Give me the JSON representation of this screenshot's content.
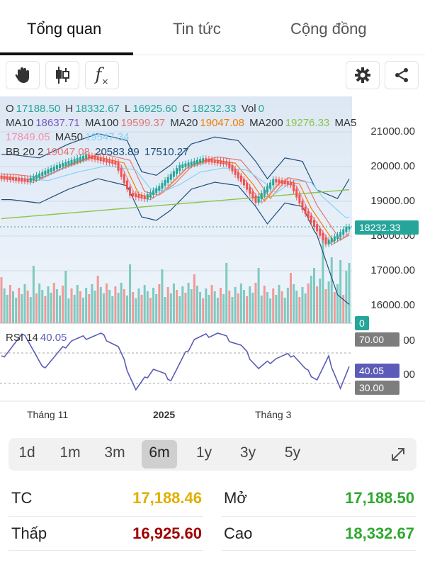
{
  "tabs": [
    {
      "label": "Tổng quan",
      "active": true
    },
    {
      "label": "Tin tức",
      "active": false
    },
    {
      "label": "Cộng đồng",
      "active": false
    }
  ],
  "toolbar": {
    "icons": [
      "hand-icon",
      "candlestick-icon",
      "function-icon",
      "gear-icon",
      "share-icon"
    ],
    "function_label": "f"
  },
  "legend": {
    "ohlc": {
      "o_label": "O",
      "o": "17188.50",
      "h_label": "H",
      "h": "18332.67",
      "l_label": "L",
      "l": "16925.60",
      "c_label": "C",
      "c": "18232.33",
      "vol_label": "Vol",
      "vol": "0"
    },
    "ma": [
      {
        "label": "MA10",
        "value": "18637.71"
      },
      {
        "label": "MA100",
        "value": "19599.37"
      },
      {
        "label": "MA20",
        "value": "19047.08"
      },
      {
        "label": "MA200",
        "value": "19276.33"
      },
      {
        "label": "MA5",
        "value": "17849.05"
      },
      {
        "label": "MA50",
        "value": "19547.34"
      }
    ],
    "bb": {
      "label": "BB 20 2",
      "mid": "19047.08",
      "upper": "20583.89",
      "lower": "17510.27"
    },
    "rsi": {
      "label": "RSI 14",
      "value": "40.05"
    }
  },
  "price_axis": [
    "21000.00",
    "20000.00",
    "19000.00",
    "18000.00",
    "17000.00",
    "16000.00"
  ],
  "rsi_axis": [
    "70.00",
    "30.00"
  ],
  "rsi_axis_partial": [
    "00",
    "00"
  ],
  "badges": {
    "current_price": "18232.33",
    "volume": "0",
    "rsi70": "70.00",
    "rsi_value": "40.05",
    "rsi30": "30.00"
  },
  "time_axis": [
    {
      "label": "Tháng 11",
      "bold": false
    },
    {
      "label": "2025",
      "bold": true
    },
    {
      "label": "Tháng 3",
      "bold": false
    }
  ],
  "ranges": [
    {
      "label": "1d",
      "active": false
    },
    {
      "label": "1m",
      "active": false
    },
    {
      "label": "3m",
      "active": false
    },
    {
      "label": "6m",
      "active": true
    },
    {
      "label": "1y",
      "active": false
    },
    {
      "label": "3y",
      "active": false
    },
    {
      "label": "5y",
      "active": false
    }
  ],
  "stats": {
    "tc": {
      "label": "TC",
      "value": "17,188.46"
    },
    "mo": {
      "label": "Mở",
      "value": "17,188.50"
    },
    "thap": {
      "label": "Thấp",
      "value": "16,925.60"
    },
    "cao": {
      "label": "Cao",
      "value": "18,332.67"
    }
  },
  "colors": {
    "up": "#26a69a",
    "down": "#ef5350",
    "ma10": "#7e57c2",
    "ma100": "#e57373",
    "ma20": "#f57c00",
    "ma200": "#8bc34a",
    "ma5": "#f48fb1",
    "ma50": "#81d4fa",
    "bb": "#1f4e79",
    "rsi": "#5c5cb8",
    "tc_value": "#e0b000",
    "mo_value": "#2ea82e",
    "thap_value": "#a00000",
    "cao_value": "#2ea82e"
  }
}
